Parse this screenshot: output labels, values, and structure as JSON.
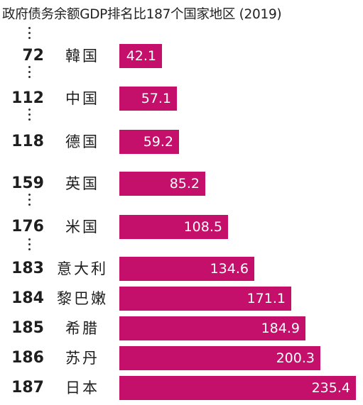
{
  "chart_data": {
    "type": "bar",
    "title": "政府债务余额GDP排名比187个国家地区 (2019)",
    "ranks": [
      "72",
      "112",
      "118",
      "159",
      "176",
      "183",
      "184",
      "185",
      "186",
      "187"
    ],
    "categories": [
      "韓国",
      "中国",
      "德国",
      "英国",
      "米国",
      "意大利",
      "黎巴嫩",
      "希腊",
      "苏丹",
      "日本"
    ],
    "values": [
      42.1,
      57.1,
      59.2,
      85.2,
      108.5,
      134.6,
      171.1,
      184.9,
      200.3,
      235.4
    ],
    "value_labels": [
      "42.1",
      "57.1",
      "59.2",
      "85.2",
      "108.5",
      "134.6",
      "171.1",
      "184.9",
      "200.3",
      "235.4"
    ],
    "bar_color": "#c4106b",
    "label_color": "#ffffff",
    "grid": false,
    "legend": "none"
  }
}
